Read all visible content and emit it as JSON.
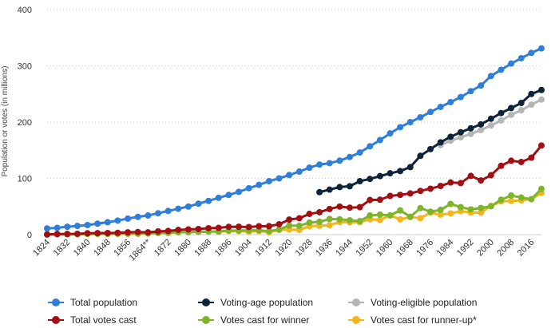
{
  "chart_data": {
    "type": "line",
    "title": "",
    "xlabel": "",
    "ylabel": "Population or votes (in millions)",
    "ylim": [
      0,
      400
    ],
    "yticks": [
      0,
      100,
      200,
      300,
      400
    ],
    "xlim": [
      1824,
      2020
    ],
    "xtick_values": [
      1824,
      1832,
      1840,
      1848,
      1856,
      1864,
      1872,
      1880,
      1888,
      1896,
      1904,
      1912,
      1920,
      1928,
      1936,
      1944,
      1952,
      1960,
      1968,
      1976,
      1984,
      1992,
      2000,
      2008,
      2016
    ],
    "xtick_labels": [
      "1824",
      "1832",
      "1840",
      "1848",
      "1856",
      "1864**",
      "1872",
      "1880",
      "1888",
      "1896",
      "1904",
      "1912",
      "1920",
      "1928",
      "1936",
      "1944",
      "1952",
      "1960",
      "1968",
      "1976",
      "1984",
      "1992",
      "2000",
      "2008",
      "2016"
    ],
    "grid": "horizontal dotted",
    "legend_position": "bottom",
    "series": [
      {
        "name": "Total population",
        "color": "#2f7ed8",
        "x": [
          1824,
          1828,
          1832,
          1836,
          1840,
          1844,
          1848,
          1852,
          1856,
          1860,
          1864,
          1868,
          1872,
          1876,
          1880,
          1884,
          1888,
          1892,
          1896,
          1900,
          1904,
          1908,
          1912,
          1916,
          1920,
          1924,
          1928,
          1932,
          1936,
          1940,
          1944,
          1948,
          1952,
          1956,
          1960,
          1964,
          1968,
          1972,
          1976,
          1980,
          1984,
          1988,
          1992,
          1996,
          2000,
          2004,
          2008,
          2012,
          2016,
          2020
        ],
        "values": [
          11,
          12,
          14,
          15.5,
          17,
          19.5,
          22,
          25,
          28.5,
          31.5,
          34,
          38,
          42,
          46,
          50,
          55,
          60,
          65.5,
          70.5,
          76,
          82.5,
          88.5,
          95,
          100,
          106,
          112,
          119,
          124.5,
          127,
          131.5,
          138,
          146,
          157,
          168,
          180,
          191,
          200,
          208.5,
          218,
          227,
          235.5,
          244.5,
          255,
          265,
          282,
          293,
          304,
          313.5,
          323,
          331
        ]
      },
      {
        "name": "Voting-age population",
        "color": "#0d233a",
        "x": [
          1932,
          1936,
          1940,
          1944,
          1948,
          1952,
          1956,
          1960,
          1964,
          1968,
          1972,
          1976,
          1980,
          1984,
          1988,
          1992,
          1996,
          2000,
          2004,
          2008,
          2012,
          2016,
          2020
        ],
        "values": [
          75.5,
          80,
          84.5,
          86,
          95,
          99,
          104,
          109,
          113,
          120,
          140,
          152,
          164,
          174,
          182,
          189,
          196,
          206,
          216,
          225,
          234,
          250,
          257
        ]
      },
      {
        "name": "Voting-eligible population",
        "color": "#b5b5b5",
        "x": [
          1980,
          1984,
          1988,
          1992,
          1996,
          2000,
          2004,
          2008,
          2012,
          2016,
          2020
        ],
        "values": [
          159,
          167,
          173,
          179,
          186,
          194,
          203,
          213,
          221,
          231,
          240
        ]
      },
      {
        "name": "Total votes cast",
        "color": "#a10f14",
        "x": [
          1824,
          1828,
          1832,
          1836,
          1840,
          1844,
          1848,
          1852,
          1856,
          1860,
          1864,
          1868,
          1872,
          1876,
          1880,
          1884,
          1888,
          1892,
          1896,
          1900,
          1904,
          1908,
          1912,
          1916,
          1920,
          1924,
          1928,
          1932,
          1936,
          1940,
          1944,
          1948,
          1952,
          1956,
          1960,
          1964,
          1968,
          1972,
          1976,
          1980,
          1984,
          1988,
          1992,
          1996,
          2000,
          2004,
          2008,
          2012,
          2016,
          2020
        ],
        "values": [
          0.4,
          1.1,
          1.2,
          1.5,
          2.4,
          2.7,
          2.9,
          3.2,
          4.1,
          4.7,
          4,
          5.7,
          6.5,
          8.4,
          9.2,
          10,
          11.4,
          12,
          13.9,
          14,
          13.5,
          14.9,
          15,
          18.5,
          26.8,
          29.1,
          36.8,
          39.8,
          45.6,
          49.9,
          47.9,
          48.8,
          61.6,
          62,
          68.8,
          70.6,
          73.2,
          77.7,
          81.6,
          86.5,
          92.7,
          91.6,
          104.4,
          96.3,
          105.6,
          122.3,
          131.3,
          129.1,
          136.7,
          158.4
        ]
      },
      {
        "name": "Votes cast for winner",
        "color": "#7cb52a",
        "x": [
          1824,
          1828,
          1832,
          1836,
          1840,
          1844,
          1848,
          1852,
          1856,
          1860,
          1864,
          1868,
          1872,
          1876,
          1880,
          1884,
          1888,
          1892,
          1896,
          1900,
          1904,
          1908,
          1912,
          1916,
          1920,
          1924,
          1928,
          1932,
          1936,
          1940,
          1944,
          1948,
          1952,
          1956,
          1960,
          1964,
          1968,
          1972,
          1976,
          1980,
          1984,
          1988,
          1992,
          1996,
          2000,
          2004,
          2008,
          2012,
          2016,
          2020
        ],
        "values": [
          0.1,
          0.6,
          0.7,
          0.8,
          1.3,
          1.3,
          1.4,
          1.6,
          1.8,
          1.9,
          2.2,
          3,
          3.6,
          4.3,
          4.4,
          4.9,
          5.5,
          5.6,
          7.1,
          7.2,
          7.6,
          7.7,
          6.3,
          9.1,
          16.1,
          15.7,
          21.4,
          22.8,
          27.8,
          27.3,
          25.6,
          24.2,
          34.1,
          35.6,
          34.2,
          43.1,
          31.8,
          47.2,
          40.8,
          43.9,
          54.5,
          48.9,
          44.9,
          47.4,
          50.5,
          62,
          69.5,
          65.9,
          63,
          81.3
        ]
      },
      {
        "name": "Votes cast for runner-up*",
        "color": "#f2b61c",
        "x": [
          1824,
          1828,
          1832,
          1836,
          1840,
          1844,
          1848,
          1852,
          1856,
          1860,
          1864,
          1868,
          1872,
          1876,
          1880,
          1884,
          1888,
          1892,
          1896,
          1900,
          1904,
          1908,
          1912,
          1916,
          1920,
          1924,
          1928,
          1932,
          1936,
          1940,
          1944,
          1948,
          1952,
          1956,
          1960,
          1964,
          1968,
          1972,
          1976,
          1980,
          1984,
          1988,
          1992,
          1996,
          2000,
          2004,
          2008,
          2012,
          2016,
          2020
        ],
        "values": [
          0.2,
          0.5,
          0.5,
          0.7,
          1.1,
          1.3,
          1.2,
          1.4,
          1.3,
          1.4,
          1.8,
          2.7,
          2.8,
          4.3,
          4.4,
          4.9,
          5.5,
          5.2,
          6.5,
          6.4,
          5.1,
          6.4,
          4.1,
          8.5,
          9.1,
          8.4,
          15,
          15.8,
          16.7,
          22.3,
          22,
          22,
          27.3,
          26,
          34.1,
          27.2,
          31.3,
          29.2,
          39.1,
          35.5,
          37.6,
          41.8,
          39.1,
          39.2,
          51,
          59,
          59.9,
          60.9,
          62.9,
          74.2
        ]
      }
    ]
  }
}
